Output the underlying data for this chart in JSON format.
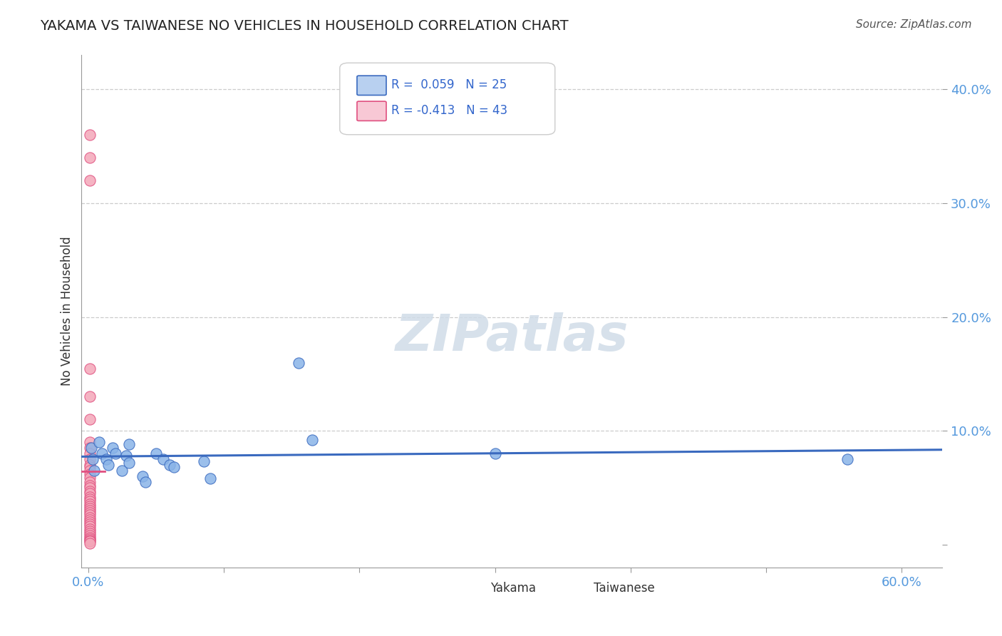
{
  "title": "YAKAMA VS TAIWANESE NO VEHICLES IN HOUSEHOLD CORRELATION CHART",
  "source": "Source: ZipAtlas.com",
  "xlabel_label": "",
  "ylabel_label": "No Vehicles in Household",
  "x_ticks": [
    0.0,
    0.1,
    0.2,
    0.3,
    0.4,
    0.5,
    0.6
  ],
  "x_tick_labels": [
    "0.0%",
    "",
    "",
    "",
    "",
    "",
    "60.0%"
  ],
  "y_ticks": [
    0.0,
    0.1,
    0.2,
    0.3,
    0.4
  ],
  "y_tick_labels": [
    "",
    "10.0%",
    "20.0%",
    "30.0%",
    "40.0%"
  ],
  "xlim": [
    -0.005,
    0.63
  ],
  "ylim": [
    -0.02,
    0.43
  ],
  "yakama_R": 0.059,
  "yakama_N": 25,
  "taiwanese_R": -0.413,
  "taiwanese_N": 43,
  "yakama_color": "#8ab4e8",
  "taiwanese_color": "#f4a7b9",
  "trend_blue": "#3a6abf",
  "trend_pink": "#e05080",
  "legend_yakama_fill": "#b8d0f0",
  "legend_taiwanese_fill": "#f8c8d5",
  "watermark_color": "#d0dce8",
  "background_color": "#ffffff",
  "grid_color": "#cccccc",
  "title_color": "#222222",
  "axis_label_color": "#333333",
  "tick_color": "#5599dd",
  "legend_r_color": "#3366cc",
  "legend_n_color": "#3366cc",
  "yakama_x": [
    0.002,
    0.003,
    0.004,
    0.008,
    0.01,
    0.013,
    0.015,
    0.018,
    0.02,
    0.025,
    0.028,
    0.03,
    0.03,
    0.04,
    0.042,
    0.05,
    0.055,
    0.06,
    0.063,
    0.085,
    0.09,
    0.155,
    0.165,
    0.3,
    0.56
  ],
  "yakama_y": [
    0.085,
    0.075,
    0.065,
    0.09,
    0.08,
    0.075,
    0.07,
    0.085,
    0.08,
    0.065,
    0.078,
    0.072,
    0.088,
    0.06,
    0.055,
    0.08,
    0.075,
    0.07,
    0.068,
    0.073,
    0.058,
    0.16,
    0.092,
    0.08,
    0.075
  ],
  "taiwanese_x": [
    0.001,
    0.001,
    0.001,
    0.001,
    0.001,
    0.001,
    0.001,
    0.001,
    0.001,
    0.001,
    0.001,
    0.001,
    0.001,
    0.001,
    0.001,
    0.001,
    0.001,
    0.001,
    0.001,
    0.001,
    0.001,
    0.001,
    0.001,
    0.001,
    0.001,
    0.001,
    0.001,
    0.001,
    0.001,
    0.001,
    0.001,
    0.001,
    0.001,
    0.001,
    0.001,
    0.001,
    0.001,
    0.001,
    0.001,
    0.001,
    0.001,
    0.001,
    0.001
  ],
  "taiwanese_y": [
    0.36,
    0.34,
    0.32,
    0.155,
    0.13,
    0.11,
    0.09,
    0.085,
    0.08,
    0.075,
    0.07,
    0.068,
    0.065,
    0.062,
    0.059,
    0.055,
    0.052,
    0.05,
    0.047,
    0.045,
    0.042,
    0.04,
    0.038,
    0.036,
    0.034,
    0.032,
    0.03,
    0.028,
    0.026,
    0.024,
    0.022,
    0.02,
    0.018,
    0.016,
    0.014,
    0.012,
    0.01,
    0.008,
    0.006,
    0.005,
    0.004,
    0.003,
    0.001
  ]
}
